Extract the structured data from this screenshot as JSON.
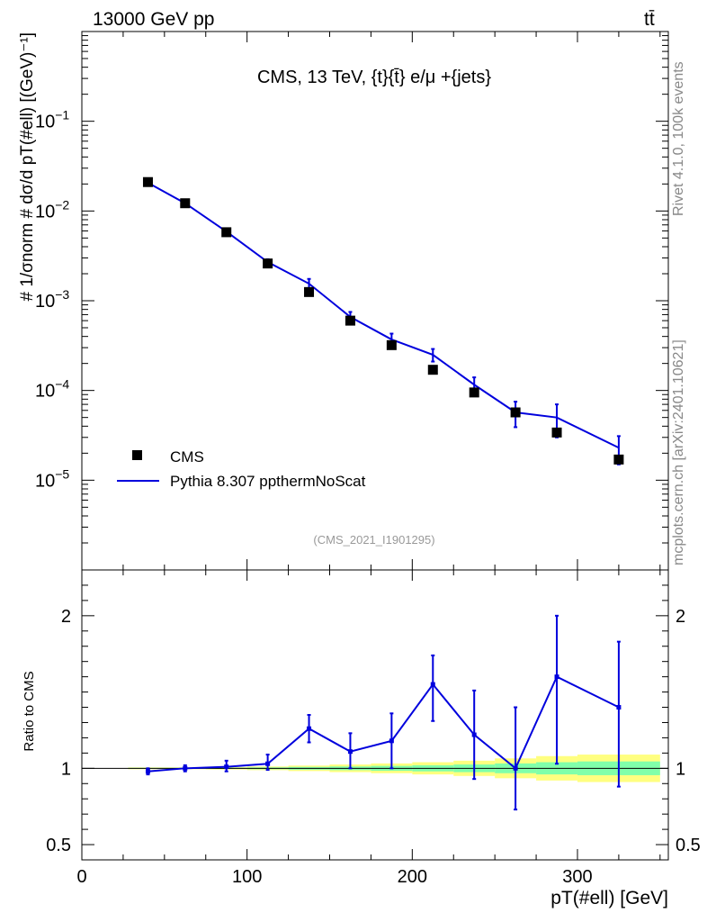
{
  "header": {
    "beam": "13000 GeV pp",
    "process": "tt̄"
  },
  "side_labels": {
    "rivet": "Rivet 4.1.0,  100k events",
    "source": "mcplots.cern.ch [arXiv:2401.10621]"
  },
  "chart_data": [
    {
      "type": "scatter",
      "panel": "main",
      "title": "CMS, 13 TeV, {t}{t̄} e/μ +{jets}",
      "watermark": "(CMS_2021_I1901295)",
      "ylabel": "# 1/σnorm # dσ/d pT(#ell) [(GeV)⁻¹]",
      "yscale": "log",
      "ylim": [
        1e-06,
        1.0
      ],
      "xlim": [
        0,
        355
      ],
      "ytick_labels": [
        {
          "v": 0.1,
          "base": "10",
          "exp": "−1"
        },
        {
          "v": 0.01,
          "base": "10",
          "exp": "−2"
        },
        {
          "v": 0.001,
          "base": "10",
          "exp": "−3"
        },
        {
          "v": 0.0001,
          "base": "10",
          "exp": "−4"
        },
        {
          "v": 1e-05,
          "base": "10",
          "exp": "−5"
        }
      ],
      "legend": {
        "position": "bottom-left",
        "entries": [
          "CMS",
          "Pythia 8.307 ppthermNoScat"
        ]
      },
      "colors": {
        "data": "#000000",
        "mc": "#0000dd"
      },
      "x": [
        40,
        62.5,
        87.5,
        112.5,
        137.5,
        162.5,
        187.5,
        212.5,
        237.5,
        262.5,
        287.5,
        325
      ],
      "series": [
        {
          "name": "CMS",
          "values": [
            0.021,
            0.0122,
            0.0058,
            0.0026,
            0.00125,
            0.0006,
            0.00032,
            0.00017,
            9.5e-05,
            5.7e-05,
            3.4e-05,
            1.7e-05
          ]
        },
        {
          "name": "Pythia 8.307 ppthermNoScat",
          "values": [
            0.0206,
            0.0122,
            0.0059,
            0.0027,
            0.00155,
            0.00066,
            0.00037,
            0.00025,
            0.000116,
            5.7e-05,
            5e-05,
            2.3e-05
          ],
          "err_low": [
            0.0201,
            0.0118,
            0.0056,
            0.0025,
            0.00135,
            0.00056,
            0.00031,
            0.00021,
            9e-05,
            3.9e-05,
            3e-05,
            1.5e-05
          ],
          "err_high": [
            0.0212,
            0.0126,
            0.0062,
            0.0029,
            0.00175,
            0.00075,
            0.00043,
            0.00029,
            0.00014,
            7.5e-05,
            7e-05,
            3.1e-05
          ]
        }
      ]
    },
    {
      "type": "line",
      "panel": "ratio",
      "ylabel": "Ratio to CMS",
      "xlabel": "pT(#ell) [GeV]",
      "xlim": [
        0,
        355
      ],
      "ylim": [
        0.4,
        2.3
      ],
      "xtick_labels": [
        0,
        100,
        200,
        300
      ],
      "ytick_labels": [
        0.5,
        1,
        2
      ],
      "colors": {
        "mc": "#0000dd",
        "band_inner": "#80ffaa",
        "band_outer": "#ffff80"
      },
      "x": [
        40,
        62.5,
        87.5,
        112.5,
        137.5,
        162.5,
        187.5,
        212.5,
        237.5,
        262.5,
        287.5,
        325
      ],
      "values": [
        0.98,
        1.0,
        1.01,
        1.03,
        1.26,
        1.11,
        1.18,
        1.55,
        1.22,
        1.0,
        1.6,
        1.4
      ],
      "err_low": [
        0.96,
        0.98,
        0.98,
        0.99,
        1.17,
        1.0,
        1.0,
        1.31,
        0.93,
        0.73,
        1.03,
        0.88
      ],
      "err_high": [
        1.0,
        1.02,
        1.05,
        1.09,
        1.35,
        1.23,
        1.36,
        1.74,
        1.51,
        1.4,
        2.0,
        1.83
      ],
      "band_edges": [
        28,
        50,
        75,
        100,
        125,
        150,
        175,
        200,
        225,
        250,
        275,
        300,
        350
      ],
      "band_inner": [
        0.003,
        0.003,
        0.004,
        0.006,
        0.009,
        0.012,
        0.016,
        0.02,
        0.025,
        0.032,
        0.04,
        0.045
      ],
      "band_outer": [
        0.006,
        0.006,
        0.008,
        0.012,
        0.018,
        0.025,
        0.032,
        0.04,
        0.05,
        0.065,
        0.08,
        0.09
      ]
    }
  ]
}
